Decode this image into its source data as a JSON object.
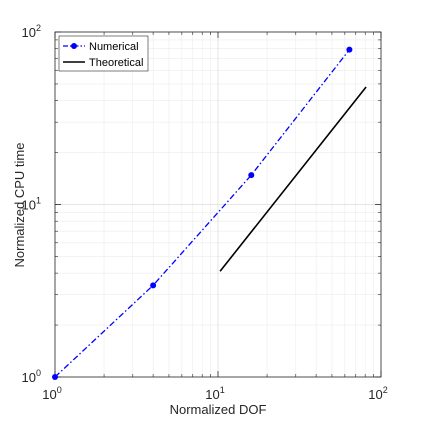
{
  "chart_data": {
    "type": "line",
    "xscale": "log",
    "yscale": "log",
    "xlabel": "Normalized DOF",
    "ylabel": "Normalized CPU time",
    "xlim": [
      1,
      100
    ],
    "ylim": [
      1,
      100
    ],
    "grid": true,
    "legend_position": "top-left",
    "x_ticks": [
      {
        "base": "10",
        "exp": "0",
        "value": 1
      },
      {
        "base": "10",
        "exp": "1",
        "value": 10
      },
      {
        "base": "10",
        "exp": "2",
        "value": 100
      }
    ],
    "y_ticks": [
      {
        "base": "10",
        "exp": "0",
        "value": 1
      },
      {
        "base": "10",
        "exp": "1",
        "value": 10
      },
      {
        "base": "10",
        "exp": "2",
        "value": 100
      }
    ],
    "series": [
      {
        "name": "Numerical",
        "color": "#0000ff",
        "line_style": "dash-dot",
        "marker": "circle",
        "x": [
          1,
          4,
          16,
          64
        ],
        "y": [
          1,
          3.4,
          14.8,
          79
        ]
      },
      {
        "name": "Theoretical",
        "color": "#000000",
        "line_style": "solid",
        "marker": "none",
        "x": [
          10.3,
          81
        ],
        "y": [
          4.1,
          48
        ]
      }
    ]
  }
}
